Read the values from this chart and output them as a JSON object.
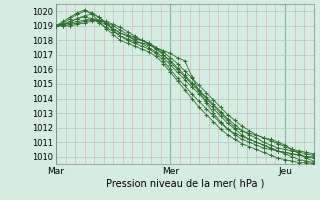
{
  "xlabel": "Pression niveau de la mer( hPa )",
  "x_ticks": [
    "Mar",
    "Mer",
    "Jeu"
  ],
  "x_tick_positions": [
    0,
    24,
    48
  ],
  "xlim": [
    0,
    54
  ],
  "ylim": [
    1009.5,
    1020.5
  ],
  "yticks": [
    1010,
    1011,
    1012,
    1013,
    1014,
    1015,
    1016,
    1017,
    1018,
    1019,
    1020
  ],
  "background_color": "#d4ece2",
  "grid_color_major": "#b0c8ba",
  "grid_color_minor": "#d4b8b8",
  "line_color": "#2d6e2d",
  "series": [
    [
      1019.0,
      1019.1,
      1019.3,
      1019.5,
      1019.7,
      1019.8,
      1019.6,
      1019.2,
      1018.8,
      1018.5,
      1018.3,
      1018.1,
      1018.0,
      1017.8,
      1017.5,
      1017.0,
      1016.5,
      1016.0,
      1015.5,
      1015.0,
      1014.5,
      1014.0,
      1013.5,
      1013.0,
      1012.5,
      1012.0,
      1011.8,
      1011.6,
      1011.5,
      1011.3,
      1011.2,
      1011.0,
      1010.8,
      1010.5,
      1010.2,
      1009.9,
      1009.7
    ],
    [
      1019.0,
      1019.2,
      1019.5,
      1019.8,
      1020.0,
      1019.9,
      1019.6,
      1019.2,
      1018.7,
      1018.3,
      1018.0,
      1017.8,
      1017.6,
      1017.4,
      1017.1,
      1016.6,
      1016.0,
      1015.4,
      1014.9,
      1014.3,
      1013.8,
      1013.3,
      1012.8,
      1012.3,
      1011.9,
      1011.6,
      1011.4,
      1011.2,
      1011.0,
      1010.8,
      1010.6,
      1010.4,
      1010.2,
      1010.0,
      1009.8,
      1009.7,
      1009.6
    ],
    [
      1019.0,
      1019.3,
      1019.6,
      1019.9,
      1020.1,
      1019.8,
      1019.3,
      1018.8,
      1018.4,
      1018.0,
      1017.8,
      1017.6,
      1017.4,
      1017.2,
      1016.9,
      1016.4,
      1015.8,
      1015.2,
      1014.6,
      1014.0,
      1013.4,
      1012.9,
      1012.4,
      1011.9,
      1011.5,
      1011.2,
      1010.9,
      1010.7,
      1010.5,
      1010.3,
      1010.1,
      1009.9,
      1009.8,
      1009.7,
      1009.6,
      1009.6,
      1009.5
    ],
    [
      1019.0,
      1019.0,
      1019.1,
      1019.2,
      1019.3,
      1019.4,
      1019.3,
      1019.1,
      1018.8,
      1018.5,
      1018.3,
      1018.0,
      1017.8,
      1017.5,
      1017.2,
      1016.8,
      1016.3,
      1015.8,
      1015.3,
      1014.8,
      1014.3,
      1013.8,
      1013.3,
      1012.8,
      1012.3,
      1011.9,
      1011.5,
      1011.2,
      1011.0,
      1010.8,
      1010.6,
      1010.4,
      1010.3,
      1010.2,
      1010.1,
      1010.0,
      1010.0
    ],
    [
      1019.0,
      1019.1,
      1019.2,
      1019.3,
      1019.4,
      1019.5,
      1019.4,
      1019.2,
      1019.0,
      1018.7,
      1018.4,
      1018.2,
      1018.0,
      1017.8,
      1017.5,
      1017.2,
      1016.8,
      1016.4,
      1015.9,
      1015.4,
      1014.9,
      1014.4,
      1013.9,
      1013.4,
      1012.9,
      1012.5,
      1012.1,
      1011.8,
      1011.5,
      1011.3,
      1011.1,
      1010.9,
      1010.7,
      1010.5,
      1010.4,
      1010.3,
      1010.2
    ],
    [
      1019.0,
      1019.0,
      1019.0,
      1019.1,
      1019.2,
      1019.3,
      1019.4,
      1019.3,
      1019.1,
      1018.9,
      1018.6,
      1018.3,
      1018.0,
      1017.7,
      1017.4,
      1017.0,
      1016.6,
      1016.1,
      1015.6,
      1015.1,
      1014.6,
      1014.1,
      1013.6,
      1013.1,
      1012.6,
      1012.2,
      1011.8,
      1011.5,
      1011.3,
      1011.0,
      1010.8,
      1010.6,
      1010.5,
      1010.4,
      1010.3,
      1010.2,
      1010.1
    ],
    [
      1019.0,
      1019.1,
      1019.3,
      1019.5,
      1019.6,
      1019.5,
      1019.2,
      1018.9,
      1018.6,
      1018.3,
      1018.1,
      1017.9,
      1017.8,
      1017.7,
      1017.5,
      1017.3,
      1017.1,
      1016.8,
      1016.6,
      1015.5,
      1014.5,
      1013.7,
      1013.0,
      1012.4,
      1011.9,
      1011.5,
      1011.2,
      1011.0,
      1010.8,
      1010.6,
      1010.5,
      1010.4,
      1010.3,
      1010.2,
      1010.1,
      1010.0,
      1009.9
    ]
  ]
}
